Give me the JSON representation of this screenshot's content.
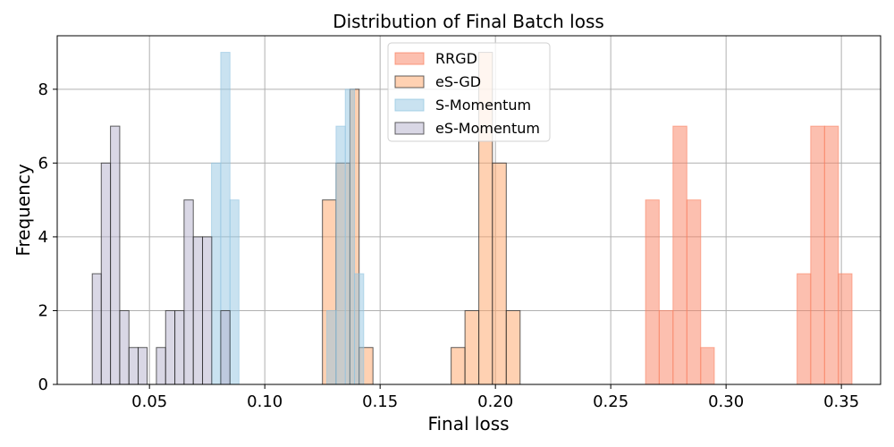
{
  "chart_data": {
    "type": "histogram",
    "title": "Distribution of Final Batch loss",
    "xlabel": "Final loss",
    "ylabel": "Frequency",
    "xlim": [
      0.01,
      0.367
    ],
    "ylim": [
      0,
      9.45
    ],
    "grid": true,
    "legend_position": "top-center",
    "x_ticks": [
      {
        "value": 0.05,
        "label": "0.05"
      },
      {
        "value": 0.1,
        "label": "0.10"
      },
      {
        "value": 0.15,
        "label": "0.15"
      },
      {
        "value": 0.2,
        "label": "0.20"
      },
      {
        "value": 0.25,
        "label": "0.25"
      },
      {
        "value": 0.3,
        "label": "0.30"
      },
      {
        "value": 0.35,
        "label": "0.35"
      }
    ],
    "y_ticks": [
      {
        "value": 0,
        "label": "0"
      },
      {
        "value": 2,
        "label": "2"
      },
      {
        "value": 4,
        "label": "4"
      },
      {
        "value": 6,
        "label": "6"
      },
      {
        "value": 8,
        "label": "8"
      }
    ],
    "series": [
      {
        "name": "RRGD",
        "color": "#FA8060",
        "opacity": 0.5,
        "edge": "#FA8060",
        "bins": [
          {
            "x0": 0.2651,
            "x1": 0.271,
            "count": 5
          },
          {
            "x0": 0.271,
            "x1": 0.277,
            "count": 2
          },
          {
            "x0": 0.277,
            "x1": 0.283,
            "count": 7
          },
          {
            "x0": 0.283,
            "x1": 0.289,
            "count": 5
          },
          {
            "x0": 0.289,
            "x1": 0.2949,
            "count": 1
          },
          {
            "x0": 0.3308,
            "x1": 0.3367,
            "count": 3
          },
          {
            "x0": 0.3367,
            "x1": 0.3427,
            "count": 7
          },
          {
            "x0": 0.3427,
            "x1": 0.3487,
            "count": 7
          },
          {
            "x0": 0.3487,
            "x1": 0.3546,
            "count": 3
          }
        ]
      },
      {
        "name": "eS-GD",
        "color": "#FFA366",
        "opacity": 0.5,
        "edge": "#2b2b2b",
        "bins": [
          {
            "x0": 0.125,
            "x1": 0.1309,
            "count": 5
          },
          {
            "x0": 0.1309,
            "x1": 0.1369,
            "count": 6
          },
          {
            "x0": 0.1369,
            "x1": 0.1409,
            "count": 8
          },
          {
            "x0": 0.1409,
            "x1": 0.1469,
            "count": 1
          },
          {
            "x0": 0.1808,
            "x1": 0.1868,
            "count": 1
          },
          {
            "x0": 0.1868,
            "x1": 0.1928,
            "count": 2
          },
          {
            "x0": 0.1928,
            "x1": 0.1987,
            "count": 9
          },
          {
            "x0": 0.1987,
            "x1": 0.2047,
            "count": 6
          },
          {
            "x0": 0.2047,
            "x1": 0.2107,
            "count": 2
          }
        ]
      },
      {
        "name": "S-Momentum",
        "color": "#93C5E1",
        "opacity": 0.5,
        "edge": "#93C5E1",
        "bins": [
          {
            "x0": 0.0769,
            "x1": 0.0809,
            "count": 6
          },
          {
            "x0": 0.0809,
            "x1": 0.0849,
            "count": 9
          },
          {
            "x0": 0.0849,
            "x1": 0.0888,
            "count": 5
          },
          {
            "x0": 0.1269,
            "x1": 0.1309,
            "count": 2
          },
          {
            "x0": 0.1309,
            "x1": 0.1349,
            "count": 7
          },
          {
            "x0": 0.1349,
            "x1": 0.1389,
            "count": 8
          },
          {
            "x0": 0.1389,
            "x1": 0.1429,
            "count": 3
          }
        ]
      },
      {
        "name": "eS-Momentum",
        "color": "#B3AFCC",
        "opacity": 0.5,
        "edge": "#2b2b2b",
        "bins": [
          {
            "x0": 0.0252,
            "x1": 0.0291,
            "count": 3
          },
          {
            "x0": 0.0291,
            "x1": 0.0331,
            "count": 6
          },
          {
            "x0": 0.0331,
            "x1": 0.0371,
            "count": 7
          },
          {
            "x0": 0.0371,
            "x1": 0.0411,
            "count": 2
          },
          {
            "x0": 0.0411,
            "x1": 0.0451,
            "count": 1
          },
          {
            "x0": 0.0451,
            "x1": 0.049,
            "count": 1
          },
          {
            "x0": 0.053,
            "x1": 0.057,
            "count": 1
          },
          {
            "x0": 0.057,
            "x1": 0.061,
            "count": 2
          },
          {
            "x0": 0.061,
            "x1": 0.065,
            "count": 2
          },
          {
            "x0": 0.065,
            "x1": 0.069,
            "count": 5
          },
          {
            "x0": 0.069,
            "x1": 0.073,
            "count": 4
          },
          {
            "x0": 0.073,
            "x1": 0.077,
            "count": 4
          },
          {
            "x0": 0.0809,
            "x1": 0.0849,
            "count": 2
          }
        ]
      }
    ]
  }
}
